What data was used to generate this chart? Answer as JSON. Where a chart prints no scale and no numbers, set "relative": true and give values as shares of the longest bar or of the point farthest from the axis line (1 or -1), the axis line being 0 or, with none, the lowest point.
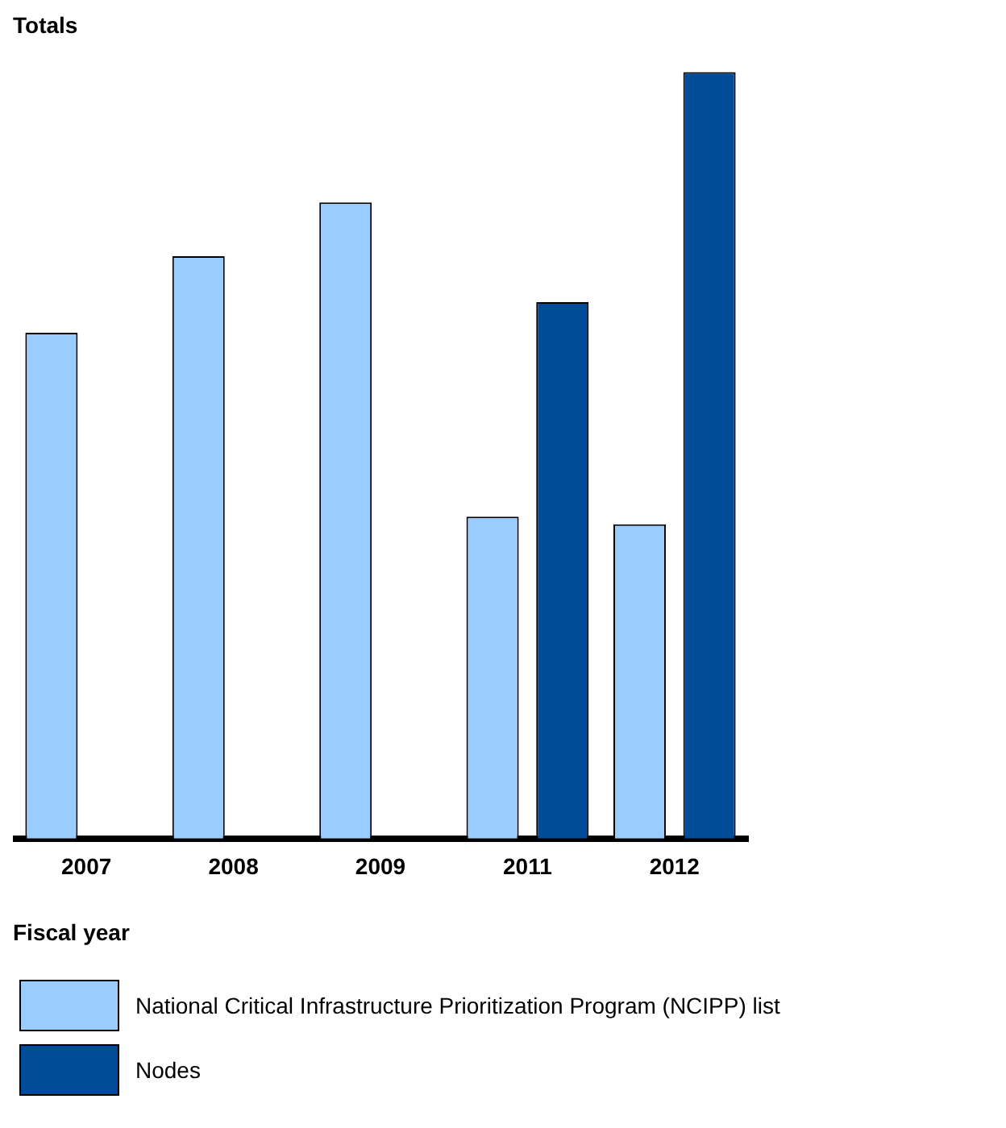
{
  "chart_data": {
    "type": "bar",
    "title": "Totals",
    "xlabel": "Fiscal year",
    "relative": true,
    "categories": [
      "2007",
      "2008",
      "2009",
      "2011",
      "2012"
    ],
    "series": [
      {
        "name": "National Critical Infrastructure Prioritization Program (NCIPP) list",
        "color": "#99ccff",
        "values": [
          0.66,
          0.76,
          0.83,
          0.42,
          0.41
        ]
      },
      {
        "name": "Nodes",
        "color": "#004c99",
        "values": [
          null,
          null,
          null,
          0.7,
          1
        ]
      }
    ],
    "grid": false,
    "legend": "bottom"
  }
}
